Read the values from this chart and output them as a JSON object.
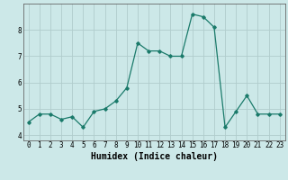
{
  "x": [
    0,
    1,
    2,
    3,
    4,
    5,
    6,
    7,
    8,
    9,
    10,
    11,
    12,
    13,
    14,
    15,
    16,
    17,
    18,
    19,
    20,
    21,
    22,
    23
  ],
  "y": [
    4.5,
    4.8,
    4.8,
    4.6,
    4.7,
    4.3,
    4.9,
    5.0,
    5.3,
    5.8,
    7.5,
    7.2,
    7.2,
    7.0,
    7.0,
    8.6,
    8.5,
    8.1,
    4.3,
    4.9,
    5.5,
    4.8,
    4.8,
    4.8
  ],
  "xlabel": "Humidex (Indice chaleur)",
  "ylim": [
    3.8,
    9.0
  ],
  "xlim": [
    -0.5,
    23.5
  ],
  "yticks": [
    4,
    5,
    6,
    7,
    8
  ],
  "xticks": [
    0,
    1,
    2,
    3,
    4,
    5,
    6,
    7,
    8,
    9,
    10,
    11,
    12,
    13,
    14,
    15,
    16,
    17,
    18,
    19,
    20,
    21,
    22,
    23
  ],
  "line_color": "#1a7a6a",
  "marker": "D",
  "marker_size": 1.8,
  "line_width": 0.9,
  "bg_color": "#cce8e8",
  "grid_color": "#b0cccc",
  "tick_label_size": 5.5,
  "xlabel_size": 7,
  "spine_color": "#666666"
}
